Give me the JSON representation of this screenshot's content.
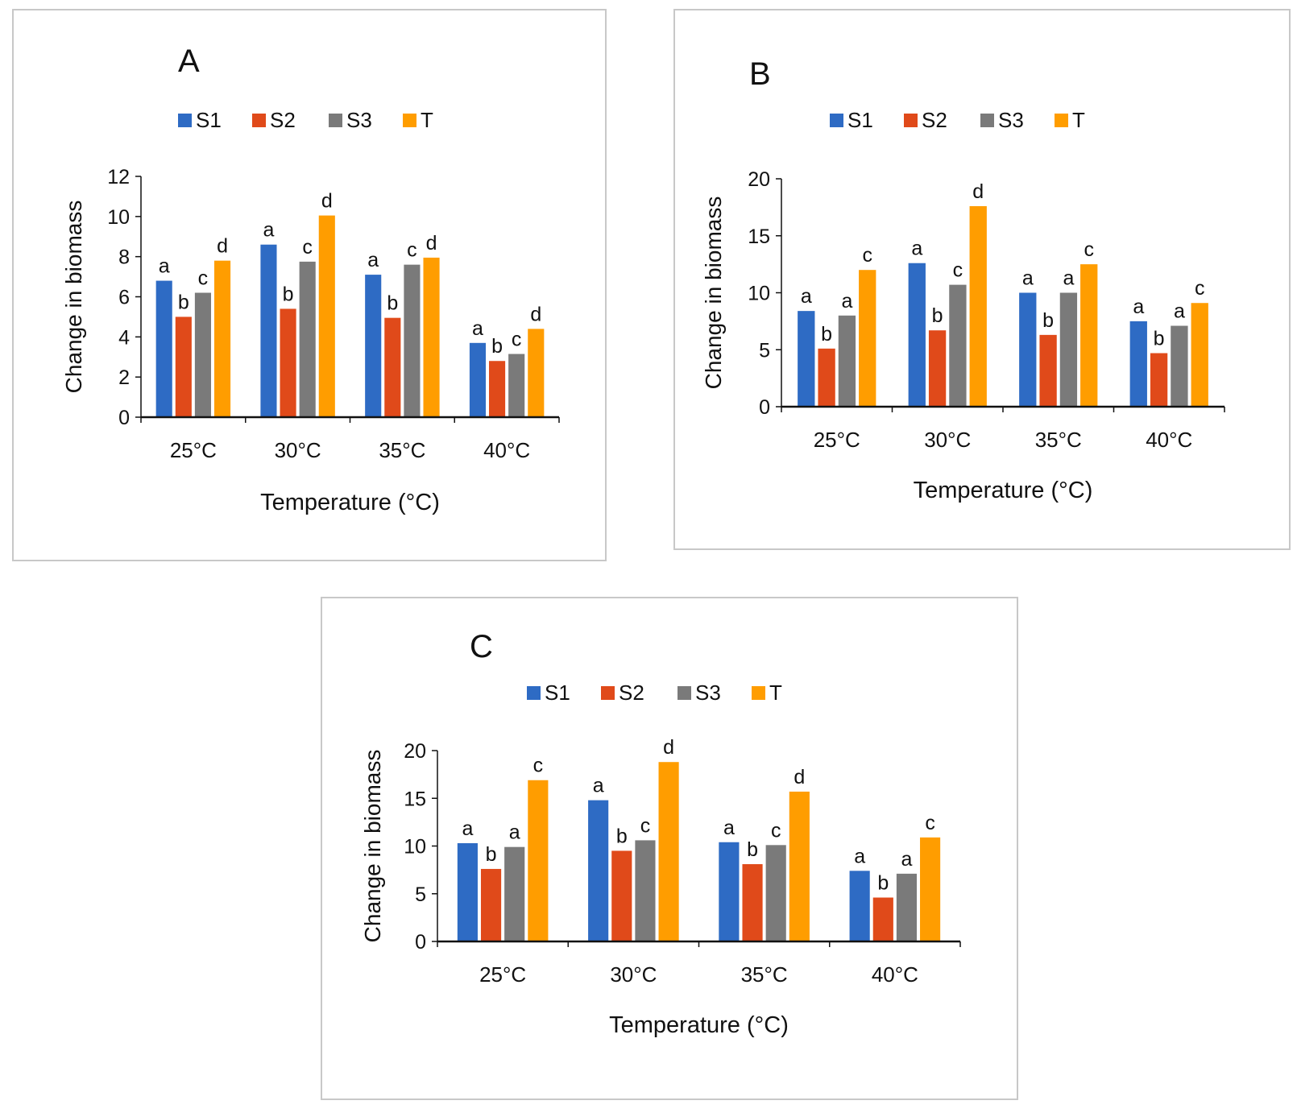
{
  "chart_data": [
    {
      "type": "bar",
      "panel_label": "A",
      "categories": [
        "25°C",
        "30°C",
        "35°C",
        "40°C"
      ],
      "series": [
        {
          "name": "S1",
          "color": "#2e6bc4",
          "values": [
            6.8,
            8.6,
            7.1,
            3.7
          ],
          "letters": [
            "a",
            "a",
            "a",
            "a"
          ]
        },
        {
          "name": "S2",
          "color": "#e04a1a",
          "values": [
            5.0,
            5.4,
            4.95,
            2.8
          ],
          "letters": [
            "b",
            "b",
            "b",
            "b"
          ]
        },
        {
          "name": "S3",
          "color": "#7a7a7a",
          "values": [
            6.2,
            7.75,
            7.6,
            3.15
          ],
          "letters": [
            "c",
            "c",
            "c",
            "c"
          ]
        },
        {
          "name": "T",
          "color": "#ff9d00",
          "values": [
            7.8,
            10.05,
            7.95,
            4.4
          ],
          "letters": [
            "d",
            "d",
            "d",
            "d"
          ]
        }
      ],
      "xlabel": "Temperature (°C)",
      "ylabel": "Change in biomass",
      "ylim": [
        0,
        12
      ],
      "yticks": [
        0,
        2,
        4,
        6,
        8,
        10,
        12
      ],
      "grid": false,
      "legend": "top"
    },
    {
      "type": "bar",
      "panel_label": "B",
      "categories": [
        "25°C",
        "30°C",
        "35°C",
        "40°C"
      ],
      "series": [
        {
          "name": "S1",
          "color": "#2e6bc4",
          "values": [
            8.4,
            12.6,
            10.0,
            7.5
          ],
          "letters": [
            "a",
            "a",
            "a",
            "a"
          ]
        },
        {
          "name": "S2",
          "color": "#e04a1a",
          "values": [
            5.1,
            6.7,
            6.3,
            4.7
          ],
          "letters": [
            "b",
            "b",
            "b",
            "b"
          ]
        },
        {
          "name": "S3",
          "color": "#7a7a7a",
          "values": [
            8.0,
            10.7,
            10.0,
            7.1
          ],
          "letters": [
            "a",
            "c",
            "a",
            "a"
          ]
        },
        {
          "name": "T",
          "color": "#ff9d00",
          "values": [
            12.0,
            17.6,
            12.5,
            9.1
          ],
          "letters": [
            "c",
            "d",
            "c",
            "c"
          ]
        }
      ],
      "xlabel": "Temperature (°C)",
      "ylabel": "Change in biomass",
      "ylim": [
        0,
        20
      ],
      "yticks": [
        0,
        5,
        10,
        15,
        20
      ],
      "grid": false,
      "legend": "top"
    },
    {
      "type": "bar",
      "panel_label": "C",
      "categories": [
        "25°C",
        "30°C",
        "35°C",
        "40°C"
      ],
      "series": [
        {
          "name": "S1",
          "color": "#2e6bc4",
          "values": [
            10.3,
            14.8,
            10.4,
            7.4
          ],
          "letters": [
            "a",
            "a",
            "a",
            "a"
          ]
        },
        {
          "name": "S2",
          "color": "#e04a1a",
          "values": [
            7.6,
            9.5,
            8.1,
            4.6
          ],
          "letters": [
            "b",
            "b",
            "b",
            "b"
          ]
        },
        {
          "name": "S3",
          "color": "#7a7a7a",
          "values": [
            9.9,
            10.6,
            10.1,
            7.1
          ],
          "letters": [
            "a",
            "c",
            "c",
            "a"
          ]
        },
        {
          "name": "T",
          "color": "#ff9d00",
          "values": [
            16.9,
            18.8,
            15.7,
            10.9
          ],
          "letters": [
            "c",
            "d",
            "d",
            "c"
          ]
        }
      ],
      "xlabel": "Temperature (°C)",
      "ylabel": "Change in biomass",
      "ylim": [
        0,
        20
      ],
      "yticks": [
        0,
        5,
        10,
        15,
        20
      ],
      "grid": false,
      "legend": "top"
    }
  ]
}
